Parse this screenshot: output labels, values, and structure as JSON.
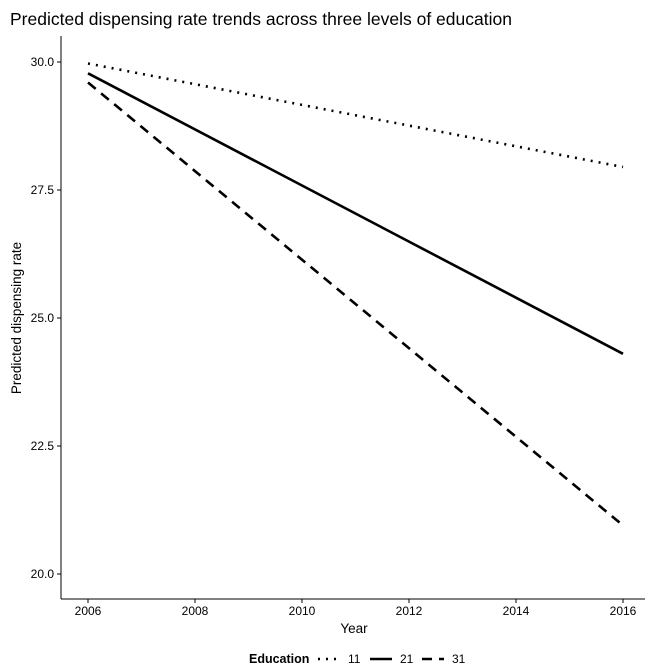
{
  "chart_data": {
    "type": "line",
    "title": "Predicted dispensing rate trends across three levels of education",
    "xlabel": "Year",
    "ylabel": "Predicted dispensing rate",
    "x": [
      2006,
      2016
    ],
    "xlim": [
      2006,
      2016
    ],
    "ylim": [
      20.0,
      30.0
    ],
    "x_ticks": [
      2006,
      2008,
      2010,
      2012,
      2014,
      2016
    ],
    "y_ticks": [
      "20.0",
      "22.5",
      "25.0",
      "27.5",
      "30.0"
    ],
    "grid": false,
    "legend": {
      "title": "Education",
      "position": "bottom",
      "orientation": "horizontal"
    },
    "series": [
      {
        "name": "11",
        "line_style": "dotted",
        "color": "#000000",
        "values": [
          29.97,
          27.95
        ]
      },
      {
        "name": "21",
        "line_style": "solid",
        "color": "#000000",
        "values": [
          29.78,
          24.3
        ]
      },
      {
        "name": "31",
        "line_style": "dashed",
        "color": "#000000",
        "values": [
          29.6,
          20.95
        ]
      }
    ]
  }
}
